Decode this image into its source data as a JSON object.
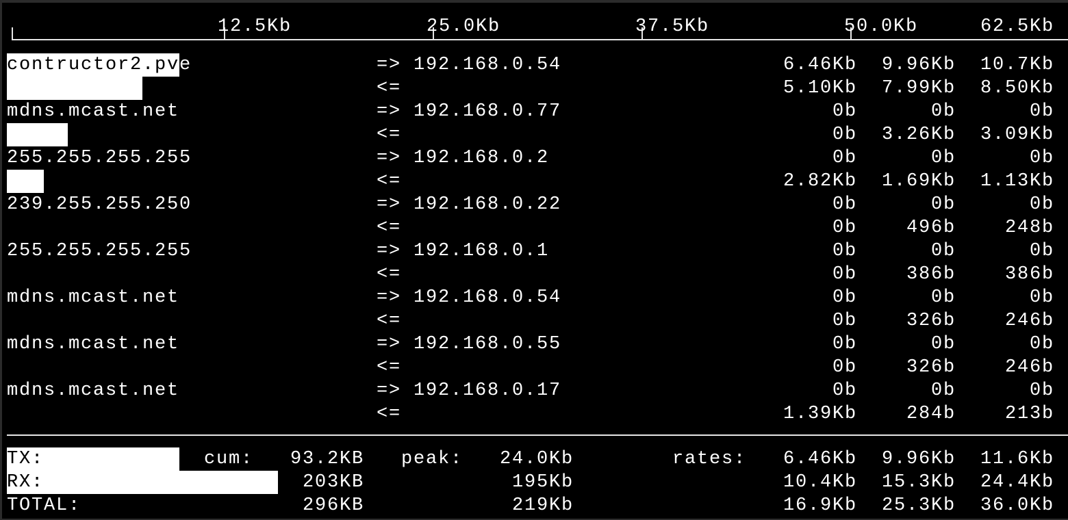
{
  "scale": {
    "labels": [
      "12.5Kb",
      "25.0Kb",
      "37.5Kb",
      "50.0Kb",
      "62.5Kb"
    ],
    "max_kb": 62.5
  },
  "flows": [
    {
      "host": "contructor2.pve",
      "peer": "192.168.0.54",
      "sent": [
        "6.46Kb",
        "9.96Kb",
        "10.7Kb"
      ],
      "recv": [
        "5.10Kb",
        "7.99Kb",
        "8.50Kb"
      ],
      "sent_bar_kb": 10.2,
      "recv_bar_kb": 8.0
    },
    {
      "host": "mdns.mcast.net",
      "peer": "192.168.0.77",
      "sent": [
        "0b",
        "0b",
        "0b"
      ],
      "recv": [
        "0b",
        "3.26Kb",
        "3.09Kb"
      ],
      "sent_bar_kb": 0,
      "recv_bar_kb": 3.6
    },
    {
      "host": "255.255.255.255",
      "peer": "192.168.0.2",
      "sent": [
        "0b",
        "0b",
        "0b"
      ],
      "recv": [
        "2.82Kb",
        "1.69Kb",
        "1.13Kb"
      ],
      "sent_bar_kb": 0,
      "recv_bar_kb": 2.2
    },
    {
      "host": "239.255.255.250",
      "peer": "192.168.0.22",
      "sent": [
        "0b",
        "0b",
        "0b"
      ],
      "recv": [
        "0b",
        "496b",
        "248b"
      ],
      "sent_bar_kb": 0,
      "recv_bar_kb": 0
    },
    {
      "host": "255.255.255.255",
      "peer": "192.168.0.1",
      "sent": [
        "0b",
        "0b",
        "0b"
      ],
      "recv": [
        "0b",
        "386b",
        "386b"
      ],
      "sent_bar_kb": 0,
      "recv_bar_kb": 0
    },
    {
      "host": "mdns.mcast.net",
      "peer": "192.168.0.54",
      "sent": [
        "0b",
        "0b",
        "0b"
      ],
      "recv": [
        "0b",
        "326b",
        "246b"
      ],
      "sent_bar_kb": 0,
      "recv_bar_kb": 0
    },
    {
      "host": "mdns.mcast.net",
      "peer": "192.168.0.55",
      "sent": [
        "0b",
        "0b",
        "0b"
      ],
      "recv": [
        "0b",
        "326b",
        "246b"
      ],
      "sent_bar_kb": 0,
      "recv_bar_kb": 0
    },
    {
      "host": "mdns.mcast.net",
      "peer": "192.168.0.17",
      "sent": [
        "0b",
        "0b",
        "0b"
      ],
      "recv": [
        "1.39Kb",
        "284b",
        "213b"
      ],
      "sent_bar_kb": 0,
      "recv_bar_kb": 0
    }
  ],
  "arrows": {
    "sent": "=>",
    "recv": "<="
  },
  "totals": {
    "cum_label": "cum:",
    "peak_label": "peak:",
    "rates_label": "rates:",
    "rows": [
      {
        "label": "TX:",
        "cum": "93.2KB",
        "peak": "24.0Kb",
        "rates": [
          "6.46Kb",
          "9.96Kb",
          "11.6Kb"
        ],
        "bar_kb": 10.2
      },
      {
        "label": "RX:",
        "cum": "203KB",
        "peak": "195Kb",
        "rates": [
          "10.4Kb",
          "15.3Kb",
          "24.4Kb"
        ],
        "bar_kb": 16.0
      },
      {
        "label": "TOTAL:",
        "cum": "296KB",
        "peak": "219Kb",
        "rates": [
          "16.9Kb",
          "25.3Kb",
          "36.0Kb"
        ],
        "bar_kb": 0
      }
    ]
  }
}
